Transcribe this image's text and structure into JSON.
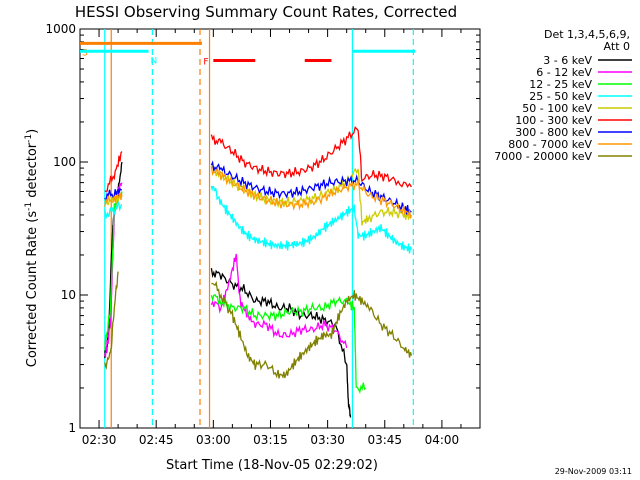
{
  "chart_data": {
    "type": "line",
    "title": "HESSI Observing Summary Count Rates, Corrected",
    "xlabel": "Start Time (18-Nov-05 02:29:02)",
    "ylabel": "Corrected Count Rate (s",
    "ylabel_sup": "-1",
    "ylabel_mid": " detector",
    "ylabel_sup2": "-1",
    "ylabel_end": ")",
    "y_scale": "log",
    "ylim": [
      1,
      1000
    ],
    "xlim": [
      "02:25",
      "04:10"
    ],
    "x_ticks": [
      "02:30",
      "02:45",
      "03:00",
      "03:15",
      "03:30",
      "03:45",
      "04:00"
    ],
    "y_ticks": [
      "1",
      "10",
      "100",
      "1000"
    ],
    "legend_title": [
      "Det 1,3,4,5,6,9,",
      "Att 0"
    ],
    "footer_date": "29-Nov-2009 03:11",
    "flag_labels": {
      "S": "S",
      "N": "N",
      "F": "F"
    },
    "series": [
      {
        "name": "3 - 6 keV",
        "color": "#000000",
        "data": [
          [
            2.5,
            3.5
          ],
          [
            3,
            4
          ],
          [
            3.5,
            5
          ],
          [
            4.5,
            30
          ],
          [
            5,
            40
          ],
          [
            6,
            60
          ],
          [
            7,
            100
          ],
          [
            30.5,
            15
          ],
          [
            33,
            14
          ],
          [
            36,
            12
          ],
          [
            39,
            11
          ],
          [
            42,
            9
          ],
          [
            45,
            9
          ],
          [
            48,
            8
          ],
          [
            51,
            8
          ],
          [
            54,
            7
          ],
          [
            57,
            7
          ],
          [
            60,
            6.5
          ],
          [
            63,
            6
          ],
          [
            66,
            3
          ],
          [
            66.5,
            1.5
          ],
          [
            67,
            1.2
          ]
        ]
      },
      {
        "name": "6 - 12 keV",
        "color": "#ff00ff",
        "data": [
          [
            2.5,
            3.5
          ],
          [
            3,
            4
          ],
          [
            4,
            6
          ],
          [
            5,
            40
          ],
          [
            6,
            60
          ],
          [
            7,
            70
          ],
          [
            30.5,
            9
          ],
          [
            33,
            8
          ],
          [
            35,
            12
          ],
          [
            37,
            20
          ],
          [
            38,
            9
          ],
          [
            40,
            7
          ],
          [
            42,
            6
          ],
          [
            45,
            6
          ],
          [
            48,
            5
          ],
          [
            51,
            5
          ],
          [
            54,
            5.5
          ],
          [
            57,
            5.5
          ],
          [
            60,
            6
          ],
          [
            63,
            5.5
          ],
          [
            66,
            4
          ]
        ]
      },
      {
        "name": "12 - 25 keV",
        "color": "#00ff00",
        "data": [
          [
            2.5,
            4
          ],
          [
            3,
            5
          ],
          [
            4,
            8
          ],
          [
            5,
            45
          ],
          [
            7,
            60
          ],
          [
            30.5,
            10
          ],
          [
            33,
            9
          ],
          [
            36,
            8
          ],
          [
            39,
            8
          ],
          [
            42,
            7
          ],
          [
            45,
            7
          ],
          [
            48,
            7
          ],
          [
            51,
            7.5
          ],
          [
            54,
            7.5
          ],
          [
            57,
            8
          ],
          [
            60,
            8
          ],
          [
            63,
            9
          ],
          [
            66,
            9
          ],
          [
            68,
            8
          ],
          [
            68.5,
            2
          ],
          [
            71,
            2
          ]
        ]
      },
      {
        "name": "25 - 50 keV",
        "color": "#00ffff",
        "data": [
          [
            2.5,
            40
          ],
          [
            4,
            42
          ],
          [
            5.5,
            45
          ],
          [
            7,
            48
          ],
          [
            30.5,
            70
          ],
          [
            32,
            55
          ],
          [
            34,
            45
          ],
          [
            36,
            38
          ],
          [
            38,
            32
          ],
          [
            40,
            28
          ],
          [
            42,
            26
          ],
          [
            44,
            25
          ],
          [
            46,
            24
          ],
          [
            48,
            23.5
          ],
          [
            50,
            23.5
          ],
          [
            52,
            24
          ],
          [
            54,
            24.5
          ],
          [
            56,
            26
          ],
          [
            58,
            28
          ],
          [
            60,
            32
          ],
          [
            62,
            35
          ],
          [
            64,
            38
          ],
          [
            66,
            42
          ],
          [
            68,
            45
          ],
          [
            69,
            28
          ],
          [
            71,
            28
          ],
          [
            73,
            30
          ],
          [
            75,
            32
          ],
          [
            77,
            28
          ],
          [
            79,
            25
          ],
          [
            81,
            23
          ],
          [
            83,
            22
          ]
        ]
      },
      {
        "name": "50 - 100 keV",
        "color": "#cccc00",
        "data": [
          [
            2.5,
            50
          ],
          [
            5,
            52
          ],
          [
            7,
            55
          ],
          [
            30.5,
            90
          ],
          [
            33,
            80
          ],
          [
            36,
            70
          ],
          [
            39,
            62
          ],
          [
            42,
            56
          ],
          [
            45,
            52
          ],
          [
            48,
            50
          ],
          [
            51,
            50
          ],
          [
            54,
            51
          ],
          [
            57,
            53
          ],
          [
            60,
            57
          ],
          [
            63,
            62
          ],
          [
            66,
            70
          ],
          [
            69,
            90
          ],
          [
            70,
            35
          ],
          [
            72,
            38
          ],
          [
            75,
            42
          ],
          [
            78,
            42
          ],
          [
            81,
            40
          ],
          [
            83,
            38
          ]
        ]
      },
      {
        "name": "100 - 300 keV",
        "color": "#ff0000",
        "data": [
          [
            2.5,
            60
          ],
          [
            5,
            80
          ],
          [
            7,
            120
          ],
          [
            30.5,
            150
          ],
          [
            33,
            140
          ],
          [
            36,
            120
          ],
          [
            39,
            100
          ],
          [
            42,
            90
          ],
          [
            45,
            85
          ],
          [
            48,
            82
          ],
          [
            51,
            82
          ],
          [
            54,
            85
          ],
          [
            57,
            92
          ],
          [
            60,
            105
          ],
          [
            63,
            125
          ],
          [
            66,
            150
          ],
          [
            69,
            180
          ],
          [
            70,
            75
          ],
          [
            73,
            80
          ],
          [
            76,
            78
          ],
          [
            79,
            72
          ],
          [
            83,
            65
          ]
        ]
      },
      {
        "name": "300 - 800 keV",
        "color": "#0000ff",
        "data": [
          [
            2.5,
            55
          ],
          [
            5,
            58
          ],
          [
            7,
            62
          ],
          [
            30.5,
            95
          ],
          [
            33,
            88
          ],
          [
            36,
            78
          ],
          [
            39,
            70
          ],
          [
            42,
            64
          ],
          [
            45,
            60
          ],
          [
            48,
            58
          ],
          [
            51,
            58
          ],
          [
            54,
            60
          ],
          [
            57,
            64
          ],
          [
            60,
            68
          ],
          [
            63,
            71
          ],
          [
            66,
            72
          ],
          [
            69,
            72
          ],
          [
            72,
            60
          ],
          [
            75,
            55
          ],
          [
            78,
            50
          ],
          [
            81,
            45
          ],
          [
            83,
            42
          ]
        ]
      },
      {
        "name": "800 - 7000 keV",
        "color": "#ff9900",
        "data": [
          [
            2.5,
            50
          ],
          [
            5,
            53
          ],
          [
            7,
            57
          ],
          [
            30.5,
            88
          ],
          [
            33,
            80
          ],
          [
            36,
            70
          ],
          [
            39,
            62
          ],
          [
            42,
            56
          ],
          [
            45,
            52
          ],
          [
            48,
            49
          ],
          [
            51,
            48
          ],
          [
            54,
            48
          ],
          [
            57,
            50
          ],
          [
            60,
            54
          ],
          [
            63,
            60
          ],
          [
            66,
            65
          ],
          [
            69,
            68
          ],
          [
            72,
            56
          ],
          [
            75,
            52
          ],
          [
            78,
            48
          ],
          [
            81,
            43
          ],
          [
            83,
            40
          ]
        ]
      },
      {
        "name": "7000 - 20000 keV",
        "color": "#808000",
        "data": [
          [
            2.5,
            3
          ],
          [
            4,
            3.5
          ],
          [
            5,
            8
          ],
          [
            6,
            15
          ],
          [
            30.5,
            13
          ],
          [
            33,
            10
          ],
          [
            36,
            7
          ],
          [
            38,
            5
          ],
          [
            40,
            3.5
          ],
          [
            42,
            3
          ],
          [
            45,
            3
          ],
          [
            48,
            2.5
          ],
          [
            50,
            2.5
          ],
          [
            52,
            3
          ],
          [
            54,
            3.5
          ],
          [
            56,
            4
          ],
          [
            58,
            4.5
          ],
          [
            60,
            5
          ],
          [
            62,
            5
          ],
          [
            64,
            7
          ],
          [
            66,
            9
          ],
          [
            68,
            10
          ],
          [
            70,
            9
          ],
          [
            72,
            8
          ],
          [
            75,
            6
          ],
          [
            78,
            5
          ],
          [
            81,
            4
          ],
          [
            83,
            3.5
          ]
        ]
      }
    ],
    "flags": {
      "saa_bar": {
        "color": "#ff8000",
        "label": "S",
        "x_start": -4,
        "x_end": 28,
        "y": 780
      },
      "night_bar": [
        {
          "color": "#00ffff",
          "label": "N",
          "x_start": -4,
          "x_end": 14,
          "y": 680
        },
        {
          "color": "#00ffff",
          "x_start": 67.5,
          "x_end": 84,
          "y": 680
        }
      ],
      "flare_bar": [
        {
          "color": "#ff0000",
          "label": "F",
          "x_start": 31,
          "x_end": 42,
          "y": 580
        },
        {
          "color": "#ff0000",
          "x_start": 55,
          "x_end": 62,
          "y": 580
        }
      ]
    },
    "vlines": [
      {
        "x": 2.5,
        "color": "#00ffff",
        "dash": false
      },
      {
        "x": 4.2,
        "color": "#ff8000",
        "dash": false
      },
      {
        "x": 15,
        "color": "#00ffff",
        "dash": true
      },
      {
        "x": 27.5,
        "color": "#ff8000",
        "dash": true
      },
      {
        "x": 30,
        "color": "#ff8000",
        "dash": false
      },
      {
        "x": 67.5,
        "color": "#00ffff",
        "dash": false
      },
      {
        "x": 83.5,
        "color": "#00ffff",
        "dash": true
      }
    ]
  }
}
